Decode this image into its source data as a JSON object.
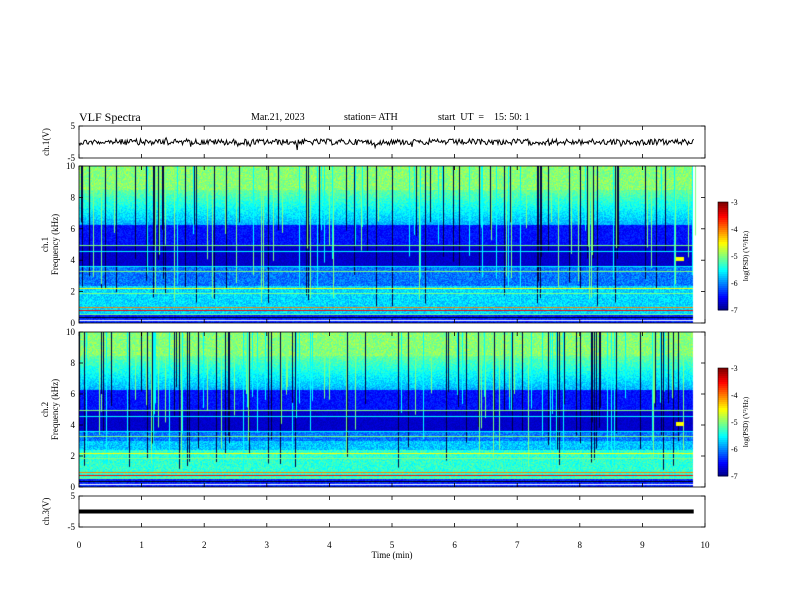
{
  "header": {
    "title": "VLF Spectra",
    "date": "Mar.21, 2023",
    "station": "station= ATH",
    "start": "start  UT  =    15: 50: 1"
  },
  "chart_data": [
    {
      "type": "line",
      "name": "ch.1 waveform",
      "ylabel": "ch.1(V)",
      "yticks": [
        "5",
        "-5"
      ],
      "ylim": [
        -5,
        5
      ],
      "xlim": [
        0,
        10
      ],
      "baseline": 0,
      "color": "#000000"
    },
    {
      "type": "heatmap",
      "ylabel": "ch.1\nFrequency  (kHz)",
      "yticks": [
        "0",
        "2",
        "4",
        "6",
        "8",
        "10"
      ],
      "ylim": [
        0,
        10
      ],
      "xlim": [
        0,
        10
      ],
      "colorbar": {
        "label": "log(PSD) (V²/Hz)",
        "ticks": [
          "-3",
          "-4",
          "-5",
          "-6",
          "-7"
        ],
        "range": [
          -7,
          -3
        ]
      }
    },
    {
      "type": "heatmap",
      "ylabel": "ch.2\nFrequency  (kHz)",
      "yticks": [
        "0",
        "2",
        "4",
        "6",
        "8",
        "10"
      ],
      "ylim": [
        0,
        10
      ],
      "xlim": [
        0,
        10
      ],
      "colorbar": {
        "label": "log(PSD) (V²/Hz)",
        "ticks": [
          "-3",
          "-4",
          "-5",
          "-6",
          "-7"
        ],
        "range": [
          -7,
          -3
        ]
      }
    },
    {
      "type": "line",
      "name": "ch.3 waveform",
      "ylabel": "ch.3(V)",
      "yticks": [
        "5",
        "-5"
      ],
      "ylim": [
        -5,
        5
      ],
      "xlim": [
        0,
        10
      ],
      "baseline": 0,
      "color": "#000000"
    }
  ],
  "xaxis": {
    "label": "Time  (min)",
    "ticks": [
      "0",
      "1",
      "2",
      "3",
      "4",
      "5",
      "6",
      "7",
      "8",
      "9",
      "10"
    ]
  },
  "colormap": [
    "#00007f",
    "#0000ff",
    "#007fff",
    "#00ffff",
    "#7fff7f",
    "#ffff00",
    "#ff7f00",
    "#ff0000",
    "#7f0000"
  ]
}
